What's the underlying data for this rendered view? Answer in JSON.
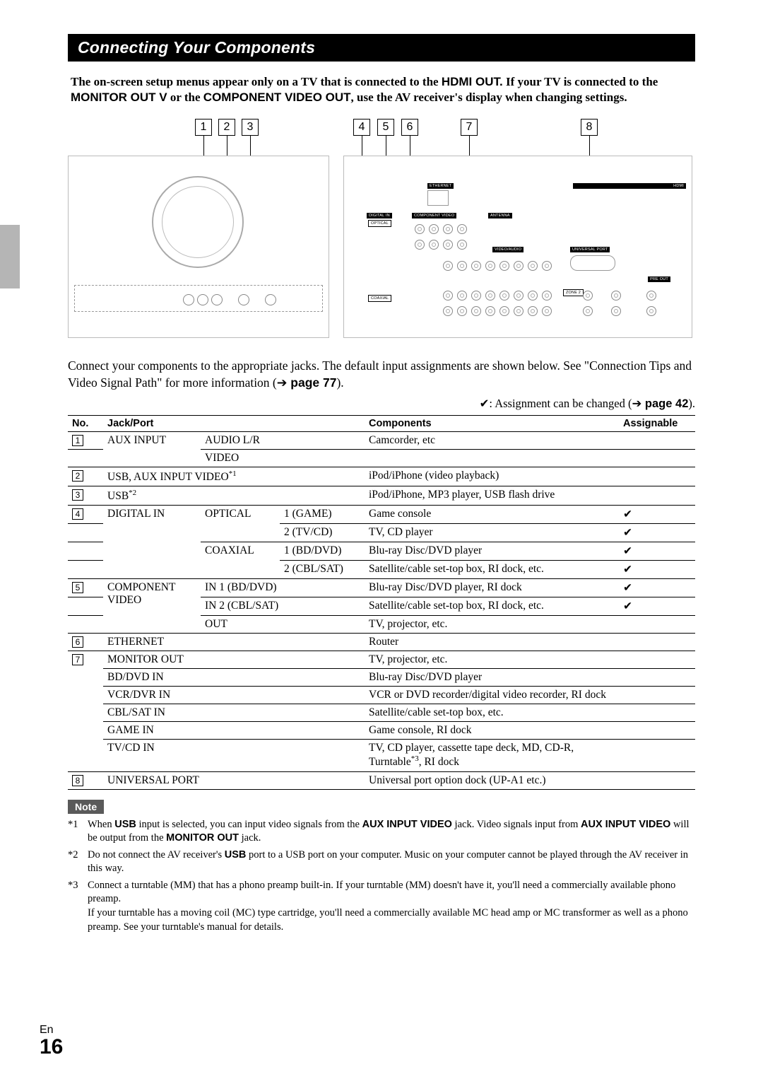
{
  "page": {
    "title": "Connecting Your Components",
    "lang": "En",
    "number": "16"
  },
  "intro": {
    "line1_a": "The on-screen setup menus appear only on a TV that is connected to the ",
    "hdmi": "HDMI OUT.",
    "line1_b": " If your TV is connected to the ",
    "monitor": "MONITOR OUT V",
    "or": " or the ",
    "comp": "COMPONENT VIDEO OUT",
    "tail": ", use the AV receiver's display when changing settings."
  },
  "callouts": {
    "positions": [
      192,
      225,
      258,
      416,
      450,
      484,
      568,
      738
    ],
    "labels": [
      "1",
      "2",
      "3",
      "4",
      "5",
      "6",
      "7",
      "8"
    ],
    "leader_heights": [
      30,
      30,
      30,
      28,
      28,
      28,
      28,
      28
    ]
  },
  "body": {
    "para": "Connect your components to the appropriate jacks. The default input assignments are shown below. See \"Connection Tips and Video Signal Path\" for more information (",
    "page77": "page 77",
    "close": ").",
    "assign_note_pre": "✔: Assignment can be changed (",
    "page42": "page 42",
    "assign_note_post": ")."
  },
  "table": {
    "headers": {
      "no": "No.",
      "jack": "Jack/Port",
      "components": "Components",
      "assignable": "Assignable"
    },
    "rows": [
      {
        "no": "1",
        "j1": "AUX INPUT",
        "j1_rs": 2,
        "j2": "AUDIO L/R",
        "j2_cs": 2,
        "comp": "Camcorder, etc",
        "assign": ""
      },
      {
        "j2": "VIDEO",
        "j2_cs": 2,
        "comp": "",
        "assign": ""
      },
      {
        "no": "2",
        "jfull": "USB, AUX INPUT VIDEO",
        "jfull_sup": "*1",
        "comp": "iPod/iPhone (video playback)",
        "assign": ""
      },
      {
        "no": "3",
        "jfull": "USB",
        "jfull_sup": "*2",
        "comp": "iPod/iPhone, MP3 player, USB flash drive",
        "assign": ""
      },
      {
        "no": "4",
        "j1": "DIGITAL IN",
        "j1_rs": 4,
        "j2": "OPTICAL",
        "j2_rs": 2,
        "j3": "1 (GAME)",
        "comp": "Game console",
        "assign": "✔"
      },
      {
        "j3": "2 (TV/CD)",
        "comp": "TV, CD player",
        "assign": "✔"
      },
      {
        "j2": "COAXIAL",
        "j2_rs": 2,
        "j3": "1 (BD/DVD)",
        "comp": "Blu-ray Disc/DVD player",
        "assign": "✔"
      },
      {
        "j3": "2 (CBL/SAT)",
        "comp": "Satellite/cable set-top box, RI dock, etc.",
        "assign": "✔"
      },
      {
        "no": "5",
        "j1": "COMPONENT VIDEO",
        "j1_rs": 3,
        "j2": "IN 1 (BD/DVD)",
        "j2_cs": 2,
        "comp": "Blu-ray Disc/DVD player, RI dock",
        "assign": "✔"
      },
      {
        "j2": "IN 2 (CBL/SAT)",
        "j2_cs": 2,
        "comp": "Satellite/cable set-top box, RI dock, etc.",
        "assign": "✔"
      },
      {
        "j2": "OUT",
        "j2_cs": 2,
        "comp": "TV, projector, etc.",
        "assign": ""
      },
      {
        "no": "6",
        "jfull": "ETHERNET",
        "comp": "Router",
        "assign": ""
      },
      {
        "no": "7",
        "jfull": "MONITOR OUT",
        "no_rs": 6,
        "comp": "TV, projector, etc.",
        "assign": ""
      },
      {
        "jfull": "BD/DVD IN",
        "comp": "Blu-ray Disc/DVD player",
        "assign": ""
      },
      {
        "jfull": "VCR/DVR IN",
        "comp": "VCR or DVD recorder/digital video recorder, RI dock",
        "assign": ""
      },
      {
        "jfull": "CBL/SAT IN",
        "comp": "Satellite/cable set-top box, etc.",
        "assign": ""
      },
      {
        "jfull": "GAME IN",
        "comp": "Game console, RI dock",
        "assign": ""
      },
      {
        "jfull": "TV/CD IN",
        "comp_pre": "TV, CD player, cassette tape deck, MD, CD-R, Turntable",
        "comp_sup": "*3",
        "comp_post": ", RI dock",
        "assign": ""
      },
      {
        "no": "8",
        "jfull": "UNIVERSAL PORT",
        "comp": "Universal port option dock (UP-A1 etc.)",
        "assign": ""
      }
    ]
  },
  "note_label": "Note",
  "footnotes": [
    {
      "m": "*1",
      "html": "When <b class='sans'>USB</b> input is selected, you can input video signals from the <b class='sans'>AUX INPUT VIDEO</b> jack. Video signals input from <b class='sans'>AUX INPUT VIDEO</b> will be output from the <b class='sans'>MONITOR OUT</b> jack."
    },
    {
      "m": "*2",
      "html": "Do not connect the AV receiver's <b class='sans'>USB</b> port to a USB port on your computer. Music on your computer cannot be played through the AV receiver in this way."
    },
    {
      "m": "*3",
      "html": "Connect a turntable (MM) that has a phono preamp built-in. If your turntable (MM) doesn't have it, you'll need a commercially available phono preamp.<br>If your turntable has a moving coil (MC) type cartridge, you'll need a commercially available MC head amp or MC transformer as well as a phono preamp. See your turntable's manual for details."
    }
  ],
  "rear_labels": {
    "ethernet": "ETHERNET",
    "hdmi": "HDMI",
    "digital_in": "DIGITAL IN",
    "optical": "OPTICAL",
    "component_video": "COMPONENT VIDEO",
    "antenna": "ANTENNA",
    "video_audio": "VIDEO/AUDIO",
    "universal_port": "UNIVERSAL PORT",
    "coaxial": "COAXIAL",
    "pre_out": "PRE OUT",
    "zone2": "ZONE 2"
  }
}
